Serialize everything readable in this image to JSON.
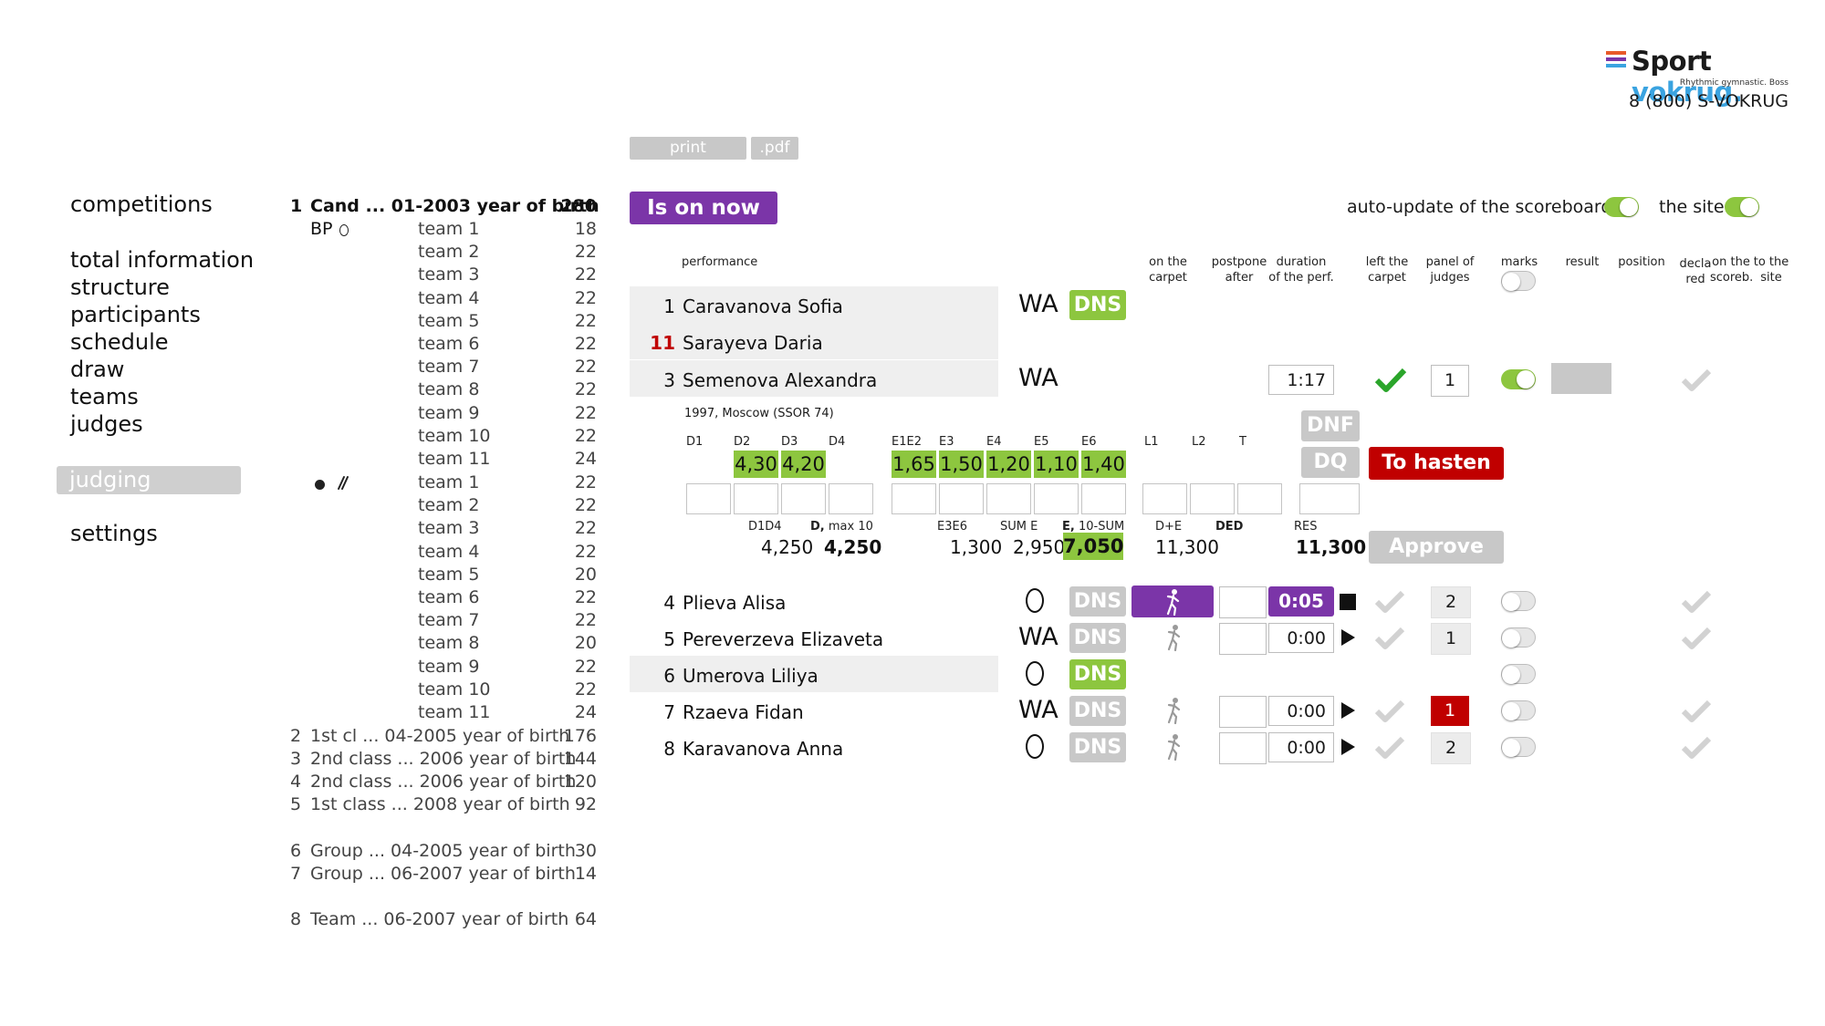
{
  "brand": {
    "name_main": "Sport",
    "name_accent": "vokrug.",
    "subtitle": "Rhythmic gymnastic. Boss",
    "phone": "8 (800) S-VOKRUG",
    "colors": {
      "accent": "#3aa3e0",
      "bars": [
        "#e85a2a",
        "#7b35a8",
        "#3aa3e0"
      ]
    }
  },
  "toolbar": {
    "print_label": "print",
    "pdf_label": ".pdf"
  },
  "nav": {
    "items": [
      "competitions",
      "total information",
      "structure",
      "participants",
      "schedule",
      "draw",
      "teams",
      "judges",
      "judging",
      "settings"
    ],
    "active": "judging"
  },
  "categories": {
    "first": {
      "num": "1",
      "name": "Cand ... 01-2003 year of birth",
      "count": "280"
    },
    "group_a": {
      "label": "BP",
      "icon": "hoop-icon",
      "teams": [
        {
          "name": "team 1",
          "count": "18"
        },
        {
          "name": "team 2",
          "count": "22"
        },
        {
          "name": "team 3",
          "count": "22"
        },
        {
          "name": "team 4",
          "count": "22"
        },
        {
          "name": "team 5",
          "count": "22"
        },
        {
          "name": "team 6",
          "count": "22"
        },
        {
          "name": "team 7",
          "count": "22"
        },
        {
          "name": "team 8",
          "count": "22"
        },
        {
          "name": "team 9",
          "count": "22"
        },
        {
          "name": "team 10",
          "count": "22"
        },
        {
          "name": "team 11",
          "count": "24"
        }
      ]
    },
    "group_b": {
      "icons": [
        "ball-icon",
        "clubs-icon"
      ],
      "teams": [
        {
          "name": "team 1",
          "count": "22"
        },
        {
          "name": "team 2",
          "count": "22"
        },
        {
          "name": "team 3",
          "count": "22"
        },
        {
          "name": "team 4",
          "count": "22"
        },
        {
          "name": "team 5",
          "count": "20"
        },
        {
          "name": "team 6",
          "count": "22"
        },
        {
          "name": "team 7",
          "count": "22"
        },
        {
          "name": "team 8",
          "count": "20"
        },
        {
          "name": "team 9",
          "count": "22"
        },
        {
          "name": "team 10",
          "count": "22"
        },
        {
          "name": "team 11",
          "count": "24"
        }
      ]
    },
    "others": [
      {
        "num": "2",
        "name": "1st cl ... 04-2005 year of birth",
        "count": "176"
      },
      {
        "num": "3",
        "name": "2nd class ... 2006 year of birth",
        "count": "144"
      },
      {
        "num": "4",
        "name": "2nd class ... 2006 year of birth",
        "count": "120"
      },
      {
        "num": "5",
        "name": "1st class ... 2008 year of birth",
        "count": "92"
      },
      {
        "num": "6",
        "name": "Group ... 04-2005 year of birth",
        "count": "30"
      },
      {
        "num": "7",
        "name": "Group ... 06-2007 year of birth",
        "count": "14"
      },
      {
        "num": "8",
        "name": "Team ... 06-2007 year of birth",
        "count": "64"
      }
    ]
  },
  "main": {
    "is_on_now": "Is on now",
    "auto_update_label": "auto-update of the scoreboard",
    "auto_update_on": true,
    "site_label": "the site",
    "site_on": true,
    "headers": {
      "performance": "performance",
      "on_carpet": [
        "on the",
        "carpet"
      ],
      "postpone": [
        "postpone",
        "after"
      ],
      "duration": [
        "duration",
        "of the perf."
      ],
      "left_carpet": [
        "left the",
        "carpet"
      ],
      "panel": [
        "panel of",
        "judges"
      ],
      "marks": "marks",
      "result": "result",
      "position": "position",
      "decla": [
        "decla",
        "red"
      ],
      "scoreb": [
        "on the",
        "scoreb."
      ],
      "site": [
        "to the",
        "site"
      ]
    }
  },
  "performances_top": [
    {
      "num": "1",
      "name": "Caravanova Sofia",
      "app": "WA",
      "status": "DNS"
    },
    {
      "num": "11",
      "name": "Sarayeva Daria"
    },
    {
      "num": "3",
      "name": "Semenova Alexandra",
      "app": "WA",
      "duration": "1:17",
      "panel": "1"
    }
  ],
  "current": {
    "info": "1997, Moscow (SSOR 74)",
    "d_labels": [
      "D1",
      "D2",
      "D3",
      "D4"
    ],
    "d_scores": [
      "4,30",
      "4,20"
    ],
    "e_labels": [
      "E1E2",
      "E3",
      "E4",
      "E5",
      "E6"
    ],
    "e_scores": [
      "1,65",
      "1,50",
      "1,20",
      "1,10",
      "1,40"
    ],
    "l_labels": [
      "L1",
      "L2",
      "T"
    ],
    "summary": {
      "d1d4_label": "D1D4",
      "d1d4": "4,250",
      "dmax_label_b": "D,",
      "dmax_label": "max 10",
      "dmax": "4,250",
      "e3e6_label": "E3E6",
      "e3e6": "1,300",
      "sume_label": "SUM E",
      "sume": "2,950",
      "e_label_b": "E,",
      "e_label": "10-SUM",
      "e": "7,050",
      "de_label": "D+E",
      "de": "11,300",
      "ded_label": "DED",
      "res_label": "RES",
      "res": "11,300"
    },
    "dnf": "DNF",
    "dq": "DQ",
    "hasten": "To hasten",
    "approve": "Approve"
  },
  "performances_bottom": [
    {
      "num": "4",
      "name": "Plieva Alisa",
      "app": "O",
      "status": "DNS",
      "timer": "0:05",
      "panel": "2",
      "active": true
    },
    {
      "num": "5",
      "name": "Pereverzeva Elizaveta",
      "app": "WA",
      "status": "DNS",
      "timer": "0:00",
      "panel": "1"
    },
    {
      "num": "6",
      "name": "Umerova Liliya",
      "app": "O",
      "status": "DNS"
    },
    {
      "num": "7",
      "name": "Rzaeva Fidan",
      "app": "WA",
      "status": "DNS",
      "timer": "0:00",
      "panel": "1"
    },
    {
      "num": "8",
      "name": "Karavanova Anna",
      "app": "O",
      "status": "DNS",
      "timer": "0:00",
      "panel": "2"
    }
  ]
}
